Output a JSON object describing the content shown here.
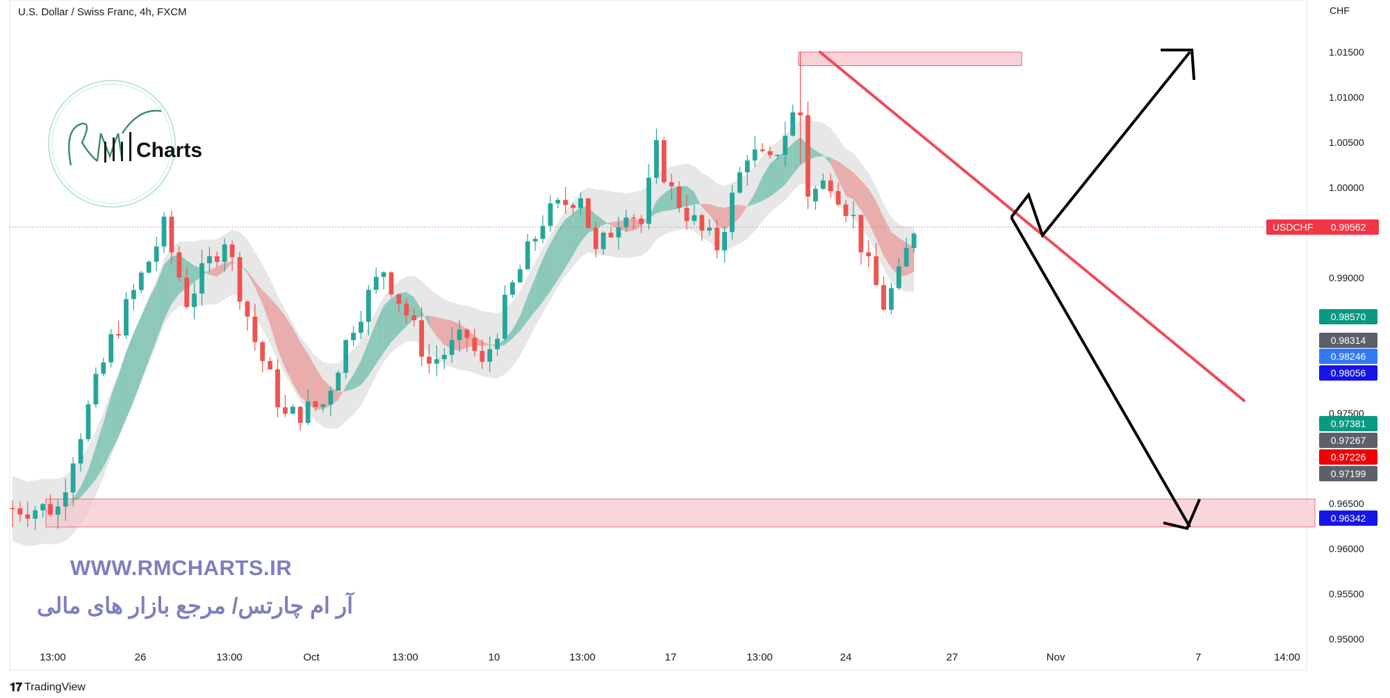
{
  "header": {
    "symbol_title": "U.S. Dollar / Swiss Franc, 4h, FXCM",
    "currency": "CHF"
  },
  "watermark": {
    "logo_text": "Charts",
    "logo_script": "RM",
    "website": "WWW.RMCHARTS.IR",
    "persian_tagline": "آر ام چارتس/ مرجع بازار های مالی"
  },
  "footer": {
    "brand": "TradingView"
  },
  "colors": {
    "bull": "#26a69a",
    "bear": "#ef5350",
    "zone_fill": "#f8c6cc",
    "zone_stroke": "#e04050",
    "trendline": "#ef4a5a",
    "arrow": "#000000",
    "ribbon_gray": "#d4d4d4",
    "ribbon_green": "#6fbfac",
    "ribbon_red": "#e99a9a",
    "current_line": "#f23645"
  },
  "current_price": {
    "symbol": "USDCHF",
    "value": "0.99562"
  },
  "price_tags": [
    {
      "value": "0.98570",
      "color": "#089981"
    },
    {
      "value": "0.98314",
      "color": "#5d606b"
    },
    {
      "value": "0.98246",
      "color": "#3179f5"
    },
    {
      "value": "0.98056",
      "color": "#1515e8"
    },
    {
      "value": "0.97381",
      "color": "#089981"
    },
    {
      "value": "0.97267",
      "color": "#5d606b"
    },
    {
      "value": "0.97226",
      "color": "#f00000"
    },
    {
      "value": "0.97199",
      "color": "#5d606b"
    },
    {
      "value": "0.96342",
      "color": "#1515e8"
    }
  ],
  "chart_data": {
    "type": "candlestick",
    "title": "U.S. Dollar / Swiss Franc, 4h, FXCM",
    "ylabel": "CHF",
    "ylim": [
      0.95,
      1.017
    ],
    "y_ticks": [
      "1.01500",
      "1.01000",
      "1.00500",
      "1.00000",
      "0.99000",
      "0.97500",
      "0.96500",
      "0.96000",
      "0.95500",
      "0.95000"
    ],
    "x_ticks": [
      "13:00",
      "26",
      "13:00",
      "Oct",
      "13:00",
      "10",
      "13:00",
      "17",
      "13:00",
      "24",
      "27",
      "Nov",
      "7",
      "14:00"
    ],
    "candle_count": 120,
    "close_anchors": [
      {
        "i": 0,
        "close": 0.9645
      },
      {
        "i": 6,
        "close": 0.9645
      },
      {
        "i": 8,
        "close": 0.9705
      },
      {
        "i": 13,
        "close": 0.983
      },
      {
        "i": 20,
        "close": 0.9955
      },
      {
        "i": 23,
        "close": 0.9875
      },
      {
        "i": 28,
        "close": 0.9945
      },
      {
        "i": 32,
        "close": 0.983
      },
      {
        "i": 36,
        "close": 0.9745
      },
      {
        "i": 41,
        "close": 0.976
      },
      {
        "i": 45,
        "close": 0.985
      },
      {
        "i": 49,
        "close": 0.991
      },
      {
        "i": 52,
        "close": 0.986
      },
      {
        "i": 55,
        "close": 0.9805
      },
      {
        "i": 60,
        "close": 0.9835
      },
      {
        "i": 62,
        "close": 0.98
      },
      {
        "i": 66,
        "close": 0.989
      },
      {
        "i": 70,
        "close": 0.9965
      },
      {
        "i": 75,
        "close": 0.9995
      },
      {
        "i": 77,
        "close": 0.9925
      },
      {
        "i": 81,
        "close": 0.998
      },
      {
        "i": 83,
        "close": 0.996
      },
      {
        "i": 85,
        "close": 1.004
      },
      {
        "i": 87,
        "close": 0.9995
      },
      {
        "i": 91,
        "close": 0.995
      },
      {
        "i": 93,
        "close": 0.9935
      },
      {
        "i": 97,
        "close": 1.004
      },
      {
        "i": 100,
        "close": 1.0025
      },
      {
        "i": 103,
        "close": 1.008
      },
      {
        "i": 105,
        "close": 0.999
      },
      {
        "i": 108,
        "close": 1.001
      },
      {
        "i": 111,
        "close": 0.9965
      },
      {
        "i": 113,
        "close": 0.991
      },
      {
        "i": 115,
        "close": 0.987
      },
      {
        "i": 117,
        "close": 0.99
      },
      {
        "i": 119,
        "close": 0.9956
      }
    ],
    "resistance_zone": {
      "y_top": 1.015,
      "y_bottom": 1.0135
    },
    "support_zone": {
      "y_top": 0.9655,
      "y_bottom": 0.9624
    },
    "trendline": {
      "from": 1.015,
      "to": 0.9764
    },
    "scenario_arrows": {
      "up_target": 1.015,
      "down_target": 0.9624,
      "pivot_high": 0.9992,
      "pivot_low": 0.9947
    }
  }
}
